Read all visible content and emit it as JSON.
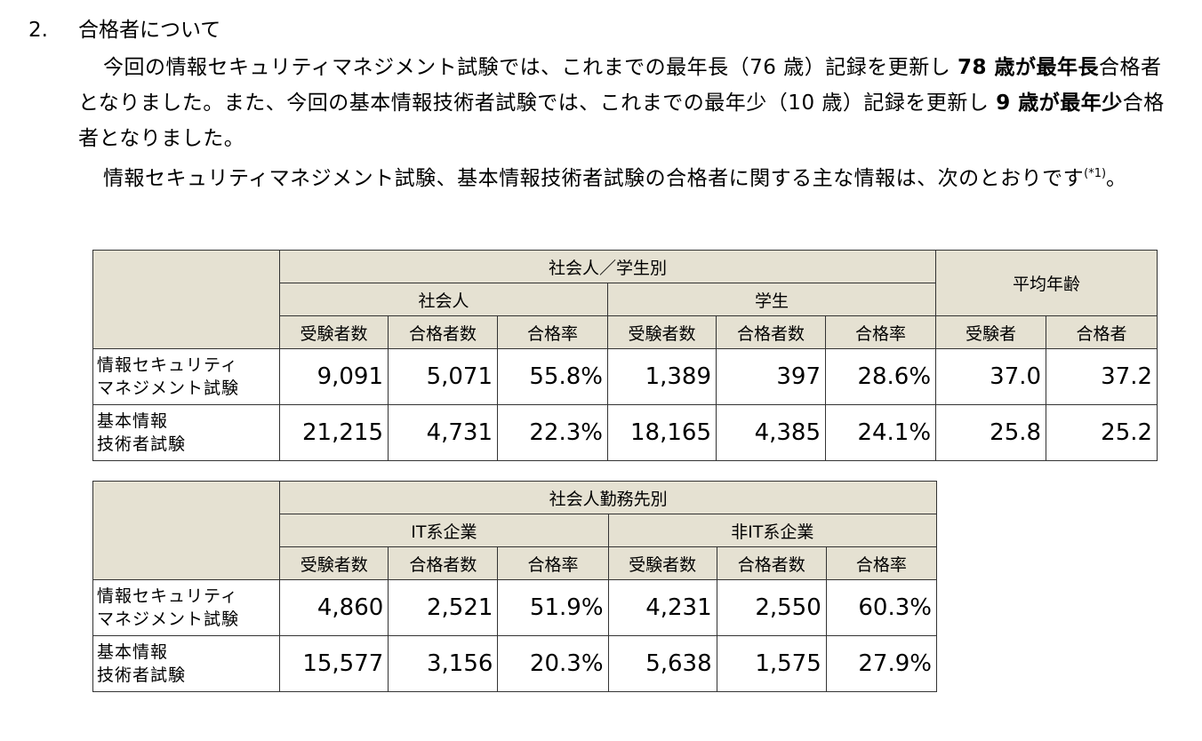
{
  "section": {
    "number": "2.",
    "title": "合格者について"
  },
  "paragraph1": {
    "s1": "今回の情報セキュリティマネジメント試験では、これまでの最年長（76 歳）記録を更新し ",
    "b1": "78 歳が最年長",
    "s2": "合格者となりました。また、今回の基本情報技術者試験では、これまでの最年少（10 歳）記録を更新し ",
    "b2": "9 歳が最年少",
    "s3": "合格者となりました。"
  },
  "paragraph2": {
    "text": "情報セキュリティマネジメント試験、基本情報技術者試験の合格者に関する主な情報は、次のとおりです",
    "note": "(*1)",
    "end": "。"
  },
  "table1": {
    "group_header": "社会人／学生別",
    "sub_header_1": "社会人",
    "sub_header_2": "学生",
    "avg_header": "平均年齢",
    "columns": [
      "受験者数",
      "合格者数",
      "合格率",
      "受験者数",
      "合格者数",
      "合格率",
      "受験者",
      "合格者"
    ],
    "rows": [
      {
        "label_line1": "情報セキュリティ",
        "label_line2": "マネジメント試験",
        "cells": [
          "9,091",
          "5,071",
          "55.8%",
          "1,389",
          "397",
          "28.6%",
          "37.0",
          "37.2"
        ]
      },
      {
        "label_line1": "基本情報",
        "label_line2": "技術者試験",
        "cells": [
          "21,215",
          "4,731",
          "22.3%",
          "18,165",
          "4,385",
          "24.1%",
          "25.8",
          "25.2"
        ]
      }
    ]
  },
  "table2": {
    "group_header": "社会人勤務先別",
    "sub_header_1": "IT系企業",
    "sub_header_2": "非IT系企業",
    "columns": [
      "受験者数",
      "合格者数",
      "合格率",
      "受験者数",
      "合格者数",
      "合格率"
    ],
    "rows": [
      {
        "label_line1": "情報セキュリティ",
        "label_line2": "マネジメント試験",
        "cells": [
          "4,860",
          "2,521",
          "51.9%",
          "4,231",
          "2,550",
          "60.3%"
        ]
      },
      {
        "label_line1": "基本情報",
        "label_line2": "技術者試験",
        "cells": [
          "15,577",
          "3,156",
          "20.3%",
          "5,638",
          "1,575",
          "27.9%"
        ]
      }
    ]
  }
}
